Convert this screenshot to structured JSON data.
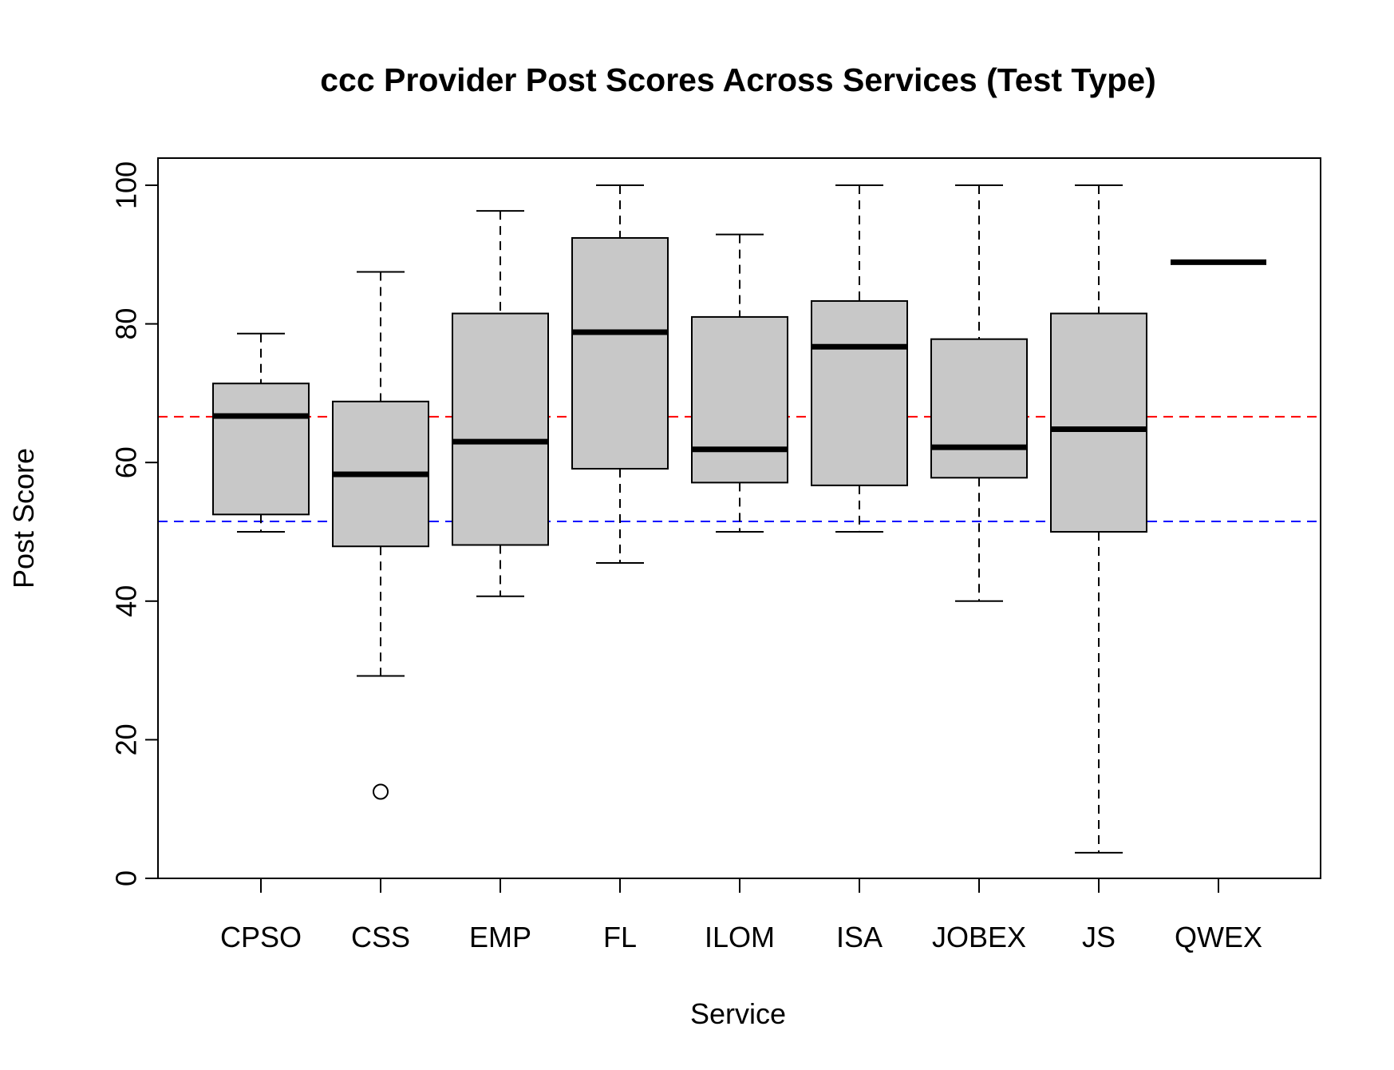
{
  "chart_data": {
    "type": "box",
    "title": "ccc Provider Post Scores Across Services (Test Type)",
    "xlabel": "Service",
    "ylabel": "Post Score",
    "ylim": [
      0,
      100
    ],
    "y_ticks": [
      "0",
      "20",
      "40",
      "60",
      "80",
      "100"
    ],
    "y_tick_values": [
      0,
      20,
      40,
      60,
      80,
      100
    ],
    "categories": [
      "CPSO",
      "CSS",
      "EMP",
      "FL",
      "ILOM",
      "ISA",
      "JOBEX",
      "JS",
      "QWEX"
    ],
    "boxes": [
      {
        "category": "CPSO",
        "min": 50.0,
        "q1": 52.5,
        "median": 66.7,
        "q3": 71.4,
        "max": 78.6,
        "outliers": []
      },
      {
        "category": "CSS",
        "min": 29.2,
        "q1": 47.9,
        "median": 58.3,
        "q3": 68.8,
        "max": 87.5,
        "outliers": [
          12.5
        ]
      },
      {
        "category": "EMP",
        "min": 40.7,
        "q1": 48.1,
        "median": 63.0,
        "q3": 81.5,
        "max": 96.3,
        "outliers": []
      },
      {
        "category": "FL",
        "min": 45.5,
        "q1": 59.1,
        "median": 78.8,
        "q3": 92.4,
        "max": 100.0,
        "outliers": []
      },
      {
        "category": "ILOM",
        "min": 50.0,
        "q1": 57.1,
        "median": 61.9,
        "q3": 81.0,
        "max": 92.9,
        "outliers": []
      },
      {
        "category": "ISA",
        "min": 50.0,
        "q1": 56.7,
        "median": 76.7,
        "q3": 83.3,
        "max": 100.0,
        "outliers": []
      },
      {
        "category": "JOBEX",
        "min": 40.0,
        "q1": 57.8,
        "median": 62.2,
        "q3": 77.8,
        "max": 100.0,
        "outliers": []
      },
      {
        "category": "JS",
        "min": 3.7,
        "q1": 50.0,
        "median": 64.8,
        "q3": 81.5,
        "max": 100.0,
        "outliers": []
      },
      {
        "category": "QWEX",
        "min": 88.9,
        "q1": 88.9,
        "median": 88.9,
        "q3": 88.9,
        "max": 88.9,
        "outliers": []
      }
    ],
    "reference_lines": [
      {
        "value": 66.6,
        "color": "#ff0000",
        "style": "dashed"
      },
      {
        "value": 51.5,
        "color": "#0000ff",
        "style": "dashed"
      }
    ],
    "box_fill": "#c8c8c8",
    "grid": false,
    "legend": "none"
  }
}
